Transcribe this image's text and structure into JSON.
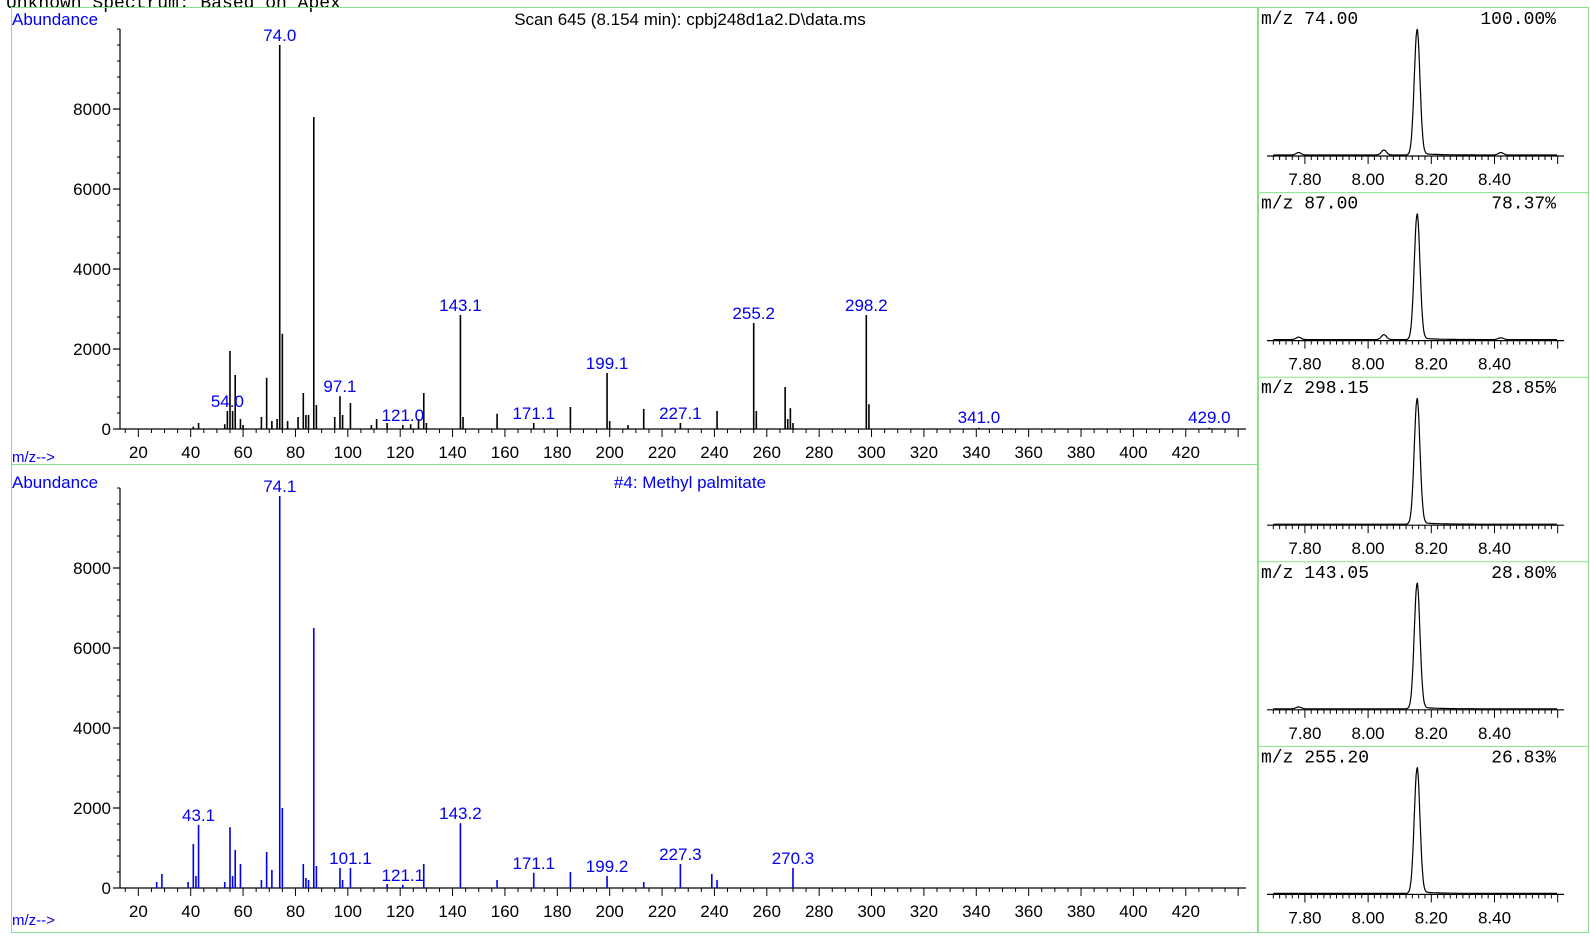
{
  "header_caption": "Unknown Spectrum: Based on Apex",
  "colors": {
    "frame": "#8be08b",
    "axis": "#000000",
    "label_blue": "#0000ee",
    "bar_black": "#000000",
    "bar_blue": "#0000ee"
  },
  "chart_data": [
    {
      "type": "bar",
      "title": "Scan 645 (8.154 min): cpbj248d1a2.D\\data.ms",
      "ylabel": "Abundance",
      "xlabel": "m/z-->",
      "xlim": [
        13,
        443
      ],
      "ylim": [
        0,
        10000
      ],
      "x_ticks": [
        20,
        40,
        60,
        80,
        100,
        120,
        140,
        160,
        180,
        200,
        220,
        240,
        260,
        280,
        300,
        320,
        340,
        360,
        380,
        400,
        420
      ],
      "y_ticks": [
        0,
        2000,
        4000,
        6000,
        8000
      ],
      "bar_color": "#000000",
      "peaks": [
        {
          "x": 41,
          "y": 60
        },
        {
          "x": 43,
          "y": 150
        },
        {
          "x": 53,
          "y": 120
        },
        {
          "x": 54,
          "y": 450
        },
        {
          "x": 55,
          "y": 1950
        },
        {
          "x": 56,
          "y": 450
        },
        {
          "x": 57,
          "y": 1350
        },
        {
          "x": 59,
          "y": 250
        },
        {
          "x": 60,
          "y": 100
        },
        {
          "x": 67,
          "y": 300
        },
        {
          "x": 69,
          "y": 1280
        },
        {
          "x": 71,
          "y": 200
        },
        {
          "x": 73,
          "y": 250
        },
        {
          "x": 74,
          "y": 9600
        },
        {
          "x": 75,
          "y": 2380
        },
        {
          "x": 77,
          "y": 200
        },
        {
          "x": 81,
          "y": 300
        },
        {
          "x": 83,
          "y": 900
        },
        {
          "x": 84,
          "y": 350
        },
        {
          "x": 85,
          "y": 350
        },
        {
          "x": 87,
          "y": 7800
        },
        {
          "x": 88,
          "y": 600
        },
        {
          "x": 95,
          "y": 300
        },
        {
          "x": 97,
          "y": 820
        },
        {
          "x": 98,
          "y": 350
        },
        {
          "x": 101,
          "y": 650
        },
        {
          "x": 109,
          "y": 100
        },
        {
          "x": 111,
          "y": 250
        },
        {
          "x": 115,
          "y": 150
        },
        {
          "x": 121,
          "y": 100
        },
        {
          "x": 124,
          "y": 120
        },
        {
          "x": 127,
          "y": 250
        },
        {
          "x": 129,
          "y": 900
        },
        {
          "x": 130,
          "y": 150
        },
        {
          "x": 143,
          "y": 2850
        },
        {
          "x": 144,
          "y": 300
        },
        {
          "x": 157,
          "y": 380
        },
        {
          "x": 171,
          "y": 150
        },
        {
          "x": 185,
          "y": 550
        },
        {
          "x": 199,
          "y": 1400
        },
        {
          "x": 200,
          "y": 200
        },
        {
          "x": 207,
          "y": 100
        },
        {
          "x": 213,
          "y": 500
        },
        {
          "x": 227,
          "y": 150
        },
        {
          "x": 241,
          "y": 450
        },
        {
          "x": 255,
          "y": 2650
        },
        {
          "x": 256,
          "y": 450
        },
        {
          "x": 267,
          "y": 1050
        },
        {
          "x": 268,
          "y": 250
        },
        {
          "x": 269,
          "y": 520
        },
        {
          "x": 270,
          "y": 150
        },
        {
          "x": 298,
          "y": 2850
        },
        {
          "x": 299,
          "y": 620
        },
        {
          "x": 341,
          "y": 30
        },
        {
          "x": 429,
          "y": 30
        }
      ],
      "peak_labels": [
        {
          "x": 74,
          "text": "74.0",
          "y": 9600
        },
        {
          "x": 54,
          "text": "54.0",
          "y": 450
        },
        {
          "x": 97,
          "text": "97.1",
          "y": 820
        },
        {
          "x": 121,
          "text": "121.0",
          "y": 100
        },
        {
          "x": 143,
          "text": "143.1",
          "y": 2850
        },
        {
          "x": 171,
          "text": "171.1",
          "y": 150
        },
        {
          "x": 199,
          "text": "199.1",
          "y": 1400
        },
        {
          "x": 227,
          "text": "227.1",
          "y": 150
        },
        {
          "x": 255,
          "text": "255.2",
          "y": 2650
        },
        {
          "x": 298,
          "text": "298.2",
          "y": 2850
        },
        {
          "x": 341,
          "text": "341.0",
          "y": 30
        },
        {
          "x": 429,
          "text": "429.0",
          "y": 30
        }
      ]
    },
    {
      "type": "bar",
      "title": "#4: Methyl palmitate",
      "ylabel": "Abundance",
      "xlabel": "m/z-->",
      "xlim": [
        13,
        443
      ],
      "ylim": [
        0,
        10000
      ],
      "x_ticks": [
        20,
        40,
        60,
        80,
        100,
        120,
        140,
        160,
        180,
        200,
        220,
        240,
        260,
        280,
        300,
        320,
        340,
        360,
        380,
        400,
        420
      ],
      "y_ticks": [
        0,
        2000,
        4000,
        6000,
        8000
      ],
      "bar_color": "#0000ee",
      "peaks": [
        {
          "x": 27,
          "y": 150
        },
        {
          "x": 29,
          "y": 350
        },
        {
          "x": 39,
          "y": 150
        },
        {
          "x": 41,
          "y": 1100
        },
        {
          "x": 42,
          "y": 300
        },
        {
          "x": 43,
          "y": 1580
        },
        {
          "x": 53,
          "y": 150
        },
        {
          "x": 55,
          "y": 1520
        },
        {
          "x": 56,
          "y": 300
        },
        {
          "x": 57,
          "y": 950
        },
        {
          "x": 59,
          "y": 600
        },
        {
          "x": 67,
          "y": 200
        },
        {
          "x": 69,
          "y": 900
        },
        {
          "x": 71,
          "y": 450
        },
        {
          "x": 74,
          "y": 9800
        },
        {
          "x": 75,
          "y": 2000
        },
        {
          "x": 83,
          "y": 600
        },
        {
          "x": 84,
          "y": 250
        },
        {
          "x": 85,
          "y": 200
        },
        {
          "x": 87,
          "y": 6500
        },
        {
          "x": 88,
          "y": 550
        },
        {
          "x": 97,
          "y": 500
        },
        {
          "x": 98,
          "y": 200
        },
        {
          "x": 101,
          "y": 500
        },
        {
          "x": 115,
          "y": 100
        },
        {
          "x": 121,
          "y": 80
        },
        {
          "x": 129,
          "y": 600
        },
        {
          "x": 143,
          "y": 1620
        },
        {
          "x": 157,
          "y": 200
        },
        {
          "x": 171,
          "y": 380
        },
        {
          "x": 185,
          "y": 400
        },
        {
          "x": 199,
          "y": 300
        },
        {
          "x": 213,
          "y": 150
        },
        {
          "x": 227,
          "y": 600
        },
        {
          "x": 239,
          "y": 350
        },
        {
          "x": 241,
          "y": 200
        },
        {
          "x": 270,
          "y": 500
        }
      ],
      "peak_labels": [
        {
          "x": 74,
          "text": "74.1",
          "y": 9800
        },
        {
          "x": 43,
          "text": "43.1",
          "y": 1580
        },
        {
          "x": 101,
          "text": "101.1",
          "y": 500
        },
        {
          "x": 121,
          "text": "121.1",
          "y": 80
        },
        {
          "x": 143,
          "text": "143.2",
          "y": 1620
        },
        {
          "x": 171,
          "text": "171.1",
          "y": 380
        },
        {
          "x": 199,
          "text": "199.2",
          "y": 300
        },
        {
          "x": 227,
          "text": "227.3",
          "y": 600
        },
        {
          "x": 270,
          "text": "270.3",
          "y": 500
        }
      ]
    }
  ],
  "ion_chromatograms": {
    "x_ticks": [
      "7.80",
      "8.00",
      "8.20",
      "8.40"
    ],
    "panels": [
      {
        "mz": "m/z  74.00",
        "percent": "100.00%",
        "rel": 1.0,
        "bumps": [
          {
            "t": 7.78,
            "h": 0.02
          },
          {
            "t": 8.05,
            "h": 0.04
          },
          {
            "t": 8.42,
            "h": 0.02
          }
        ]
      },
      {
        "mz": "m/z  87.00",
        "percent": "78.37%",
        "rel": 1.0,
        "bumps": [
          {
            "t": 7.78,
            "h": 0.02
          },
          {
            "t": 8.05,
            "h": 0.04
          },
          {
            "t": 8.42,
            "h": 0.015
          }
        ]
      },
      {
        "mz": "m/z 298.15",
        "percent": "28.85%",
        "rel": 1.0,
        "bumps": []
      },
      {
        "mz": "m/z 143.05",
        "percent": "28.80%",
        "rel": 1.0,
        "bumps": [
          {
            "t": 7.78,
            "h": 0.015
          }
        ]
      },
      {
        "mz": "m/z 255.20",
        "percent": "26.83%",
        "rel": 1.0,
        "bumps": []
      }
    ]
  }
}
